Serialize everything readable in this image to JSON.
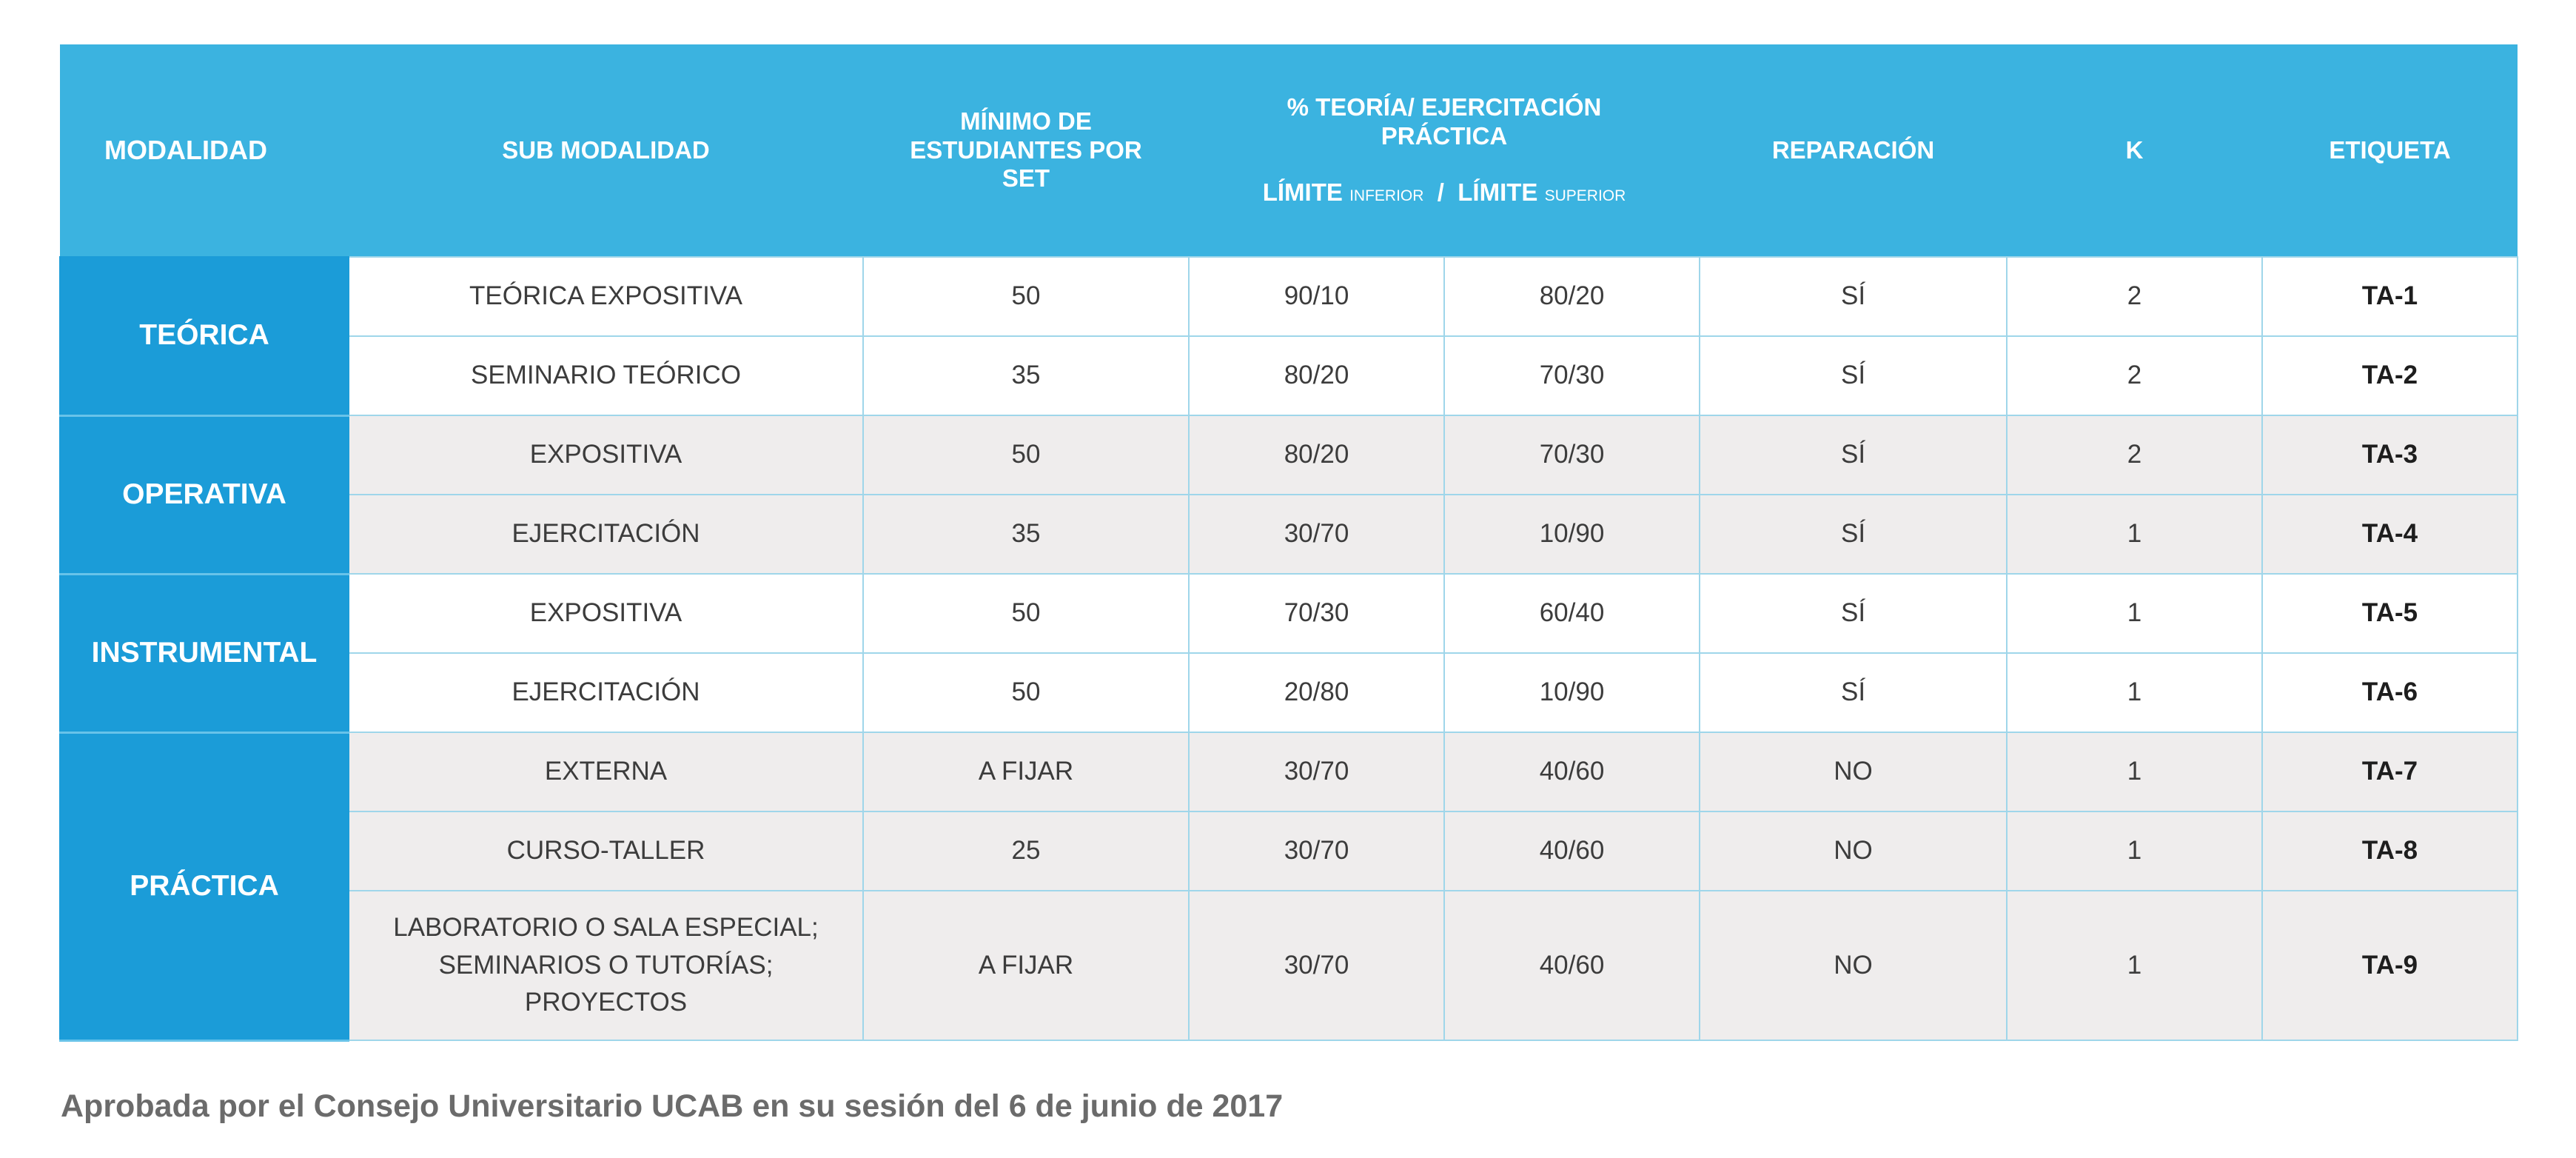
{
  "header": {
    "modalidad": "MODALIDAD",
    "sub_modalidad": "SUB MODALIDAD",
    "minimo_l1": "MÍNIMO DE",
    "minimo_l2": "ESTUDIANTES POR",
    "minimo_l3": "SET",
    "pct_l1": "% TEORÍA/ EJERCITACIÓN",
    "pct_l2": "PRÁCTICA",
    "limite_word_1": "LÍMITE",
    "inferior": "INFERIOR",
    "separator": "/",
    "limite_word_2": "LÍMITE",
    "superior": "SUPERIOR",
    "reparacion": "REPARACIÓN",
    "k": "K",
    "etiqueta": "ETIQUETA"
  },
  "groups": [
    {
      "modalidad": "TEÓRICA",
      "rows": [
        {
          "sub": "TEÓRICA EXPOSITIVA",
          "min": "50",
          "inf": "90/10",
          "sup": "80/20",
          "rep": "SÍ",
          "k": "2",
          "tag": "TA-1"
        },
        {
          "sub": "SEMINARIO TEÓRICO",
          "min": "35",
          "inf": "80/20",
          "sup": "70/30",
          "rep": "SÍ",
          "k": "2",
          "tag": "TA-2"
        }
      ]
    },
    {
      "modalidad": "OPERATIVA",
      "rows": [
        {
          "sub": "EXPOSITIVA",
          "min": "50",
          "inf": "80/20",
          "sup": "70/30",
          "rep": "SÍ",
          "k": "2",
          "tag": "TA-3"
        },
        {
          "sub": "EJERCITACIÓN",
          "min": "35",
          "inf": "30/70",
          "sup": "10/90",
          "rep": "SÍ",
          "k": "1",
          "tag": "TA-4"
        }
      ]
    },
    {
      "modalidad": "INSTRUMENTAL",
      "rows": [
        {
          "sub": "EXPOSITIVA",
          "min": "50",
          "inf": "70/30",
          "sup": "60/40",
          "rep": "SÍ",
          "k": "1",
          "tag": "TA-5"
        },
        {
          "sub": "EJERCITACIÓN",
          "min": "50",
          "inf": "20/80",
          "sup": "10/90",
          "rep": "SÍ",
          "k": "1",
          "tag": "TA-6"
        }
      ]
    },
    {
      "modalidad": "PRÁCTICA",
      "rows": [
        {
          "sub": "EXTERNA",
          "min": "A FIJAR",
          "inf": "30/70",
          "sup": "40/60",
          "rep": "NO",
          "k": "1",
          "tag": "TA-7"
        },
        {
          "sub": "CURSO-TALLER",
          "min": "25",
          "inf": "30/70",
          "sup": "40/60",
          "rep": "NO",
          "k": "1",
          "tag": "TA-8"
        },
        {
          "sub_l1": "LABORATORIO O SALA ESPECIAL;",
          "sub_l2": "SEMINARIOS O TUTORÍAS;",
          "sub_l3": "PROYECTOS",
          "min": "A FIJAR",
          "inf": "30/70",
          "sup": "40/60",
          "rep": "NO",
          "k": "1",
          "tag": "TA-9"
        }
      ]
    }
  ],
  "footnote": "Aprobada por el Consejo Universitario UCAB en su sesión del 6 de junio de 2017",
  "colors": {
    "header_bg": "#3bb3e0",
    "modality_bg": "#1b9cd8",
    "row_gray": "#efeded",
    "grid_line": "#9fd6ea",
    "footnote_text": "#6b6b6b"
  }
}
